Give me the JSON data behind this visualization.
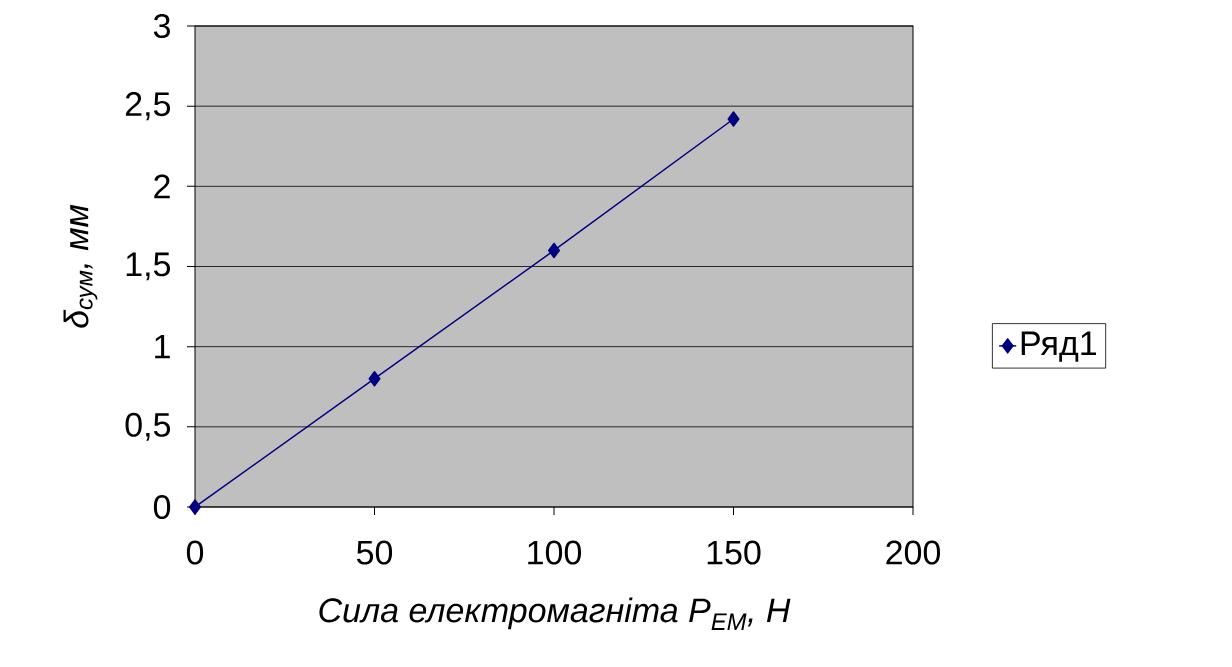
{
  "chart_data": {
    "type": "line",
    "xlabel": "Сила електромагніта P$_{ЕМ}$, Н",
    "ylabel": "δ$_{сум}$, мм",
    "x": [
      0,
      50,
      100,
      150
    ],
    "series": [
      {
        "name": "Ряд1",
        "color": "#000080",
        "values": [
          0,
          0.8,
          1.6,
          2.42
        ]
      }
    ],
    "xlim": [
      0,
      200
    ],
    "xticks": [
      0,
      50,
      100,
      150,
      200
    ],
    "ylim": [
      0,
      3
    ],
    "yticks": [
      0,
      {
        "value": 0.5,
        "label": "0,5"
      },
      1,
      {
        "value": 1.5,
        "label": "1,5"
      },
      2,
      {
        "value": 2.5,
        "label": "2,5"
      },
      3
    ],
    "grid": "y",
    "legend": "right",
    "marker": "diamond",
    "line_style": "solid"
  }
}
